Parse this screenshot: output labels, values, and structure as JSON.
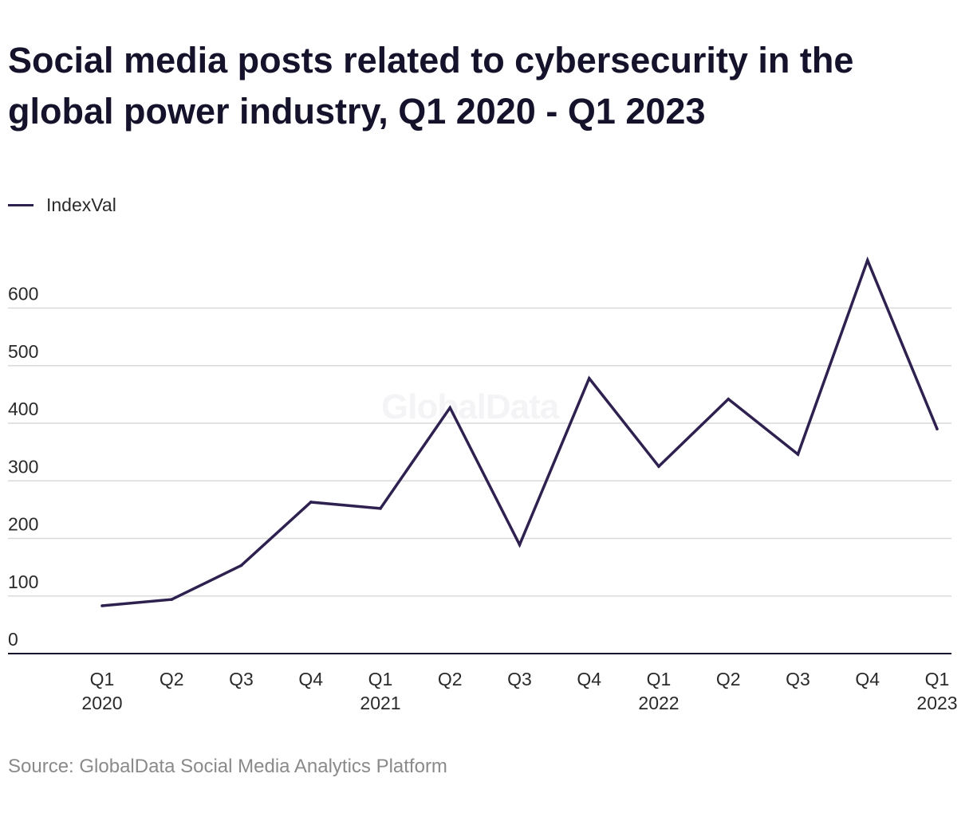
{
  "chart_data": {
    "type": "line",
    "title": "Social media posts related to cybersecurity in the global power industry, Q1 2020 - Q1 2023",
    "xlabel": "",
    "ylabel": "",
    "categories": [
      [
        "Q1",
        "2020"
      ],
      [
        "Q2",
        ""
      ],
      [
        "Q3",
        ""
      ],
      [
        "Q4",
        ""
      ],
      [
        "Q1",
        "2021"
      ],
      [
        "Q2",
        ""
      ],
      [
        "Q3",
        ""
      ],
      [
        "Q4",
        ""
      ],
      [
        "Q1",
        "2022"
      ],
      [
        "Q2",
        ""
      ],
      [
        "Q3",
        ""
      ],
      [
        "Q4",
        ""
      ],
      [
        "Q1",
        "2023"
      ]
    ],
    "series": [
      {
        "name": "IndexVal",
        "color": "#2e2150",
        "values": [
          83,
          94,
          153,
          263,
          252,
          427,
          189,
          478,
          325,
          442,
          346,
          683,
          390
        ]
      }
    ],
    "y_ticks": [
      0,
      100,
      200,
      300,
      400,
      500,
      600
    ],
    "ylim": [
      0,
      683
    ],
    "grid": true,
    "legend_position": "top-left"
  },
  "watermark": "GlobalData",
  "source": "Source: GlobalData Social Media Analytics Platform"
}
